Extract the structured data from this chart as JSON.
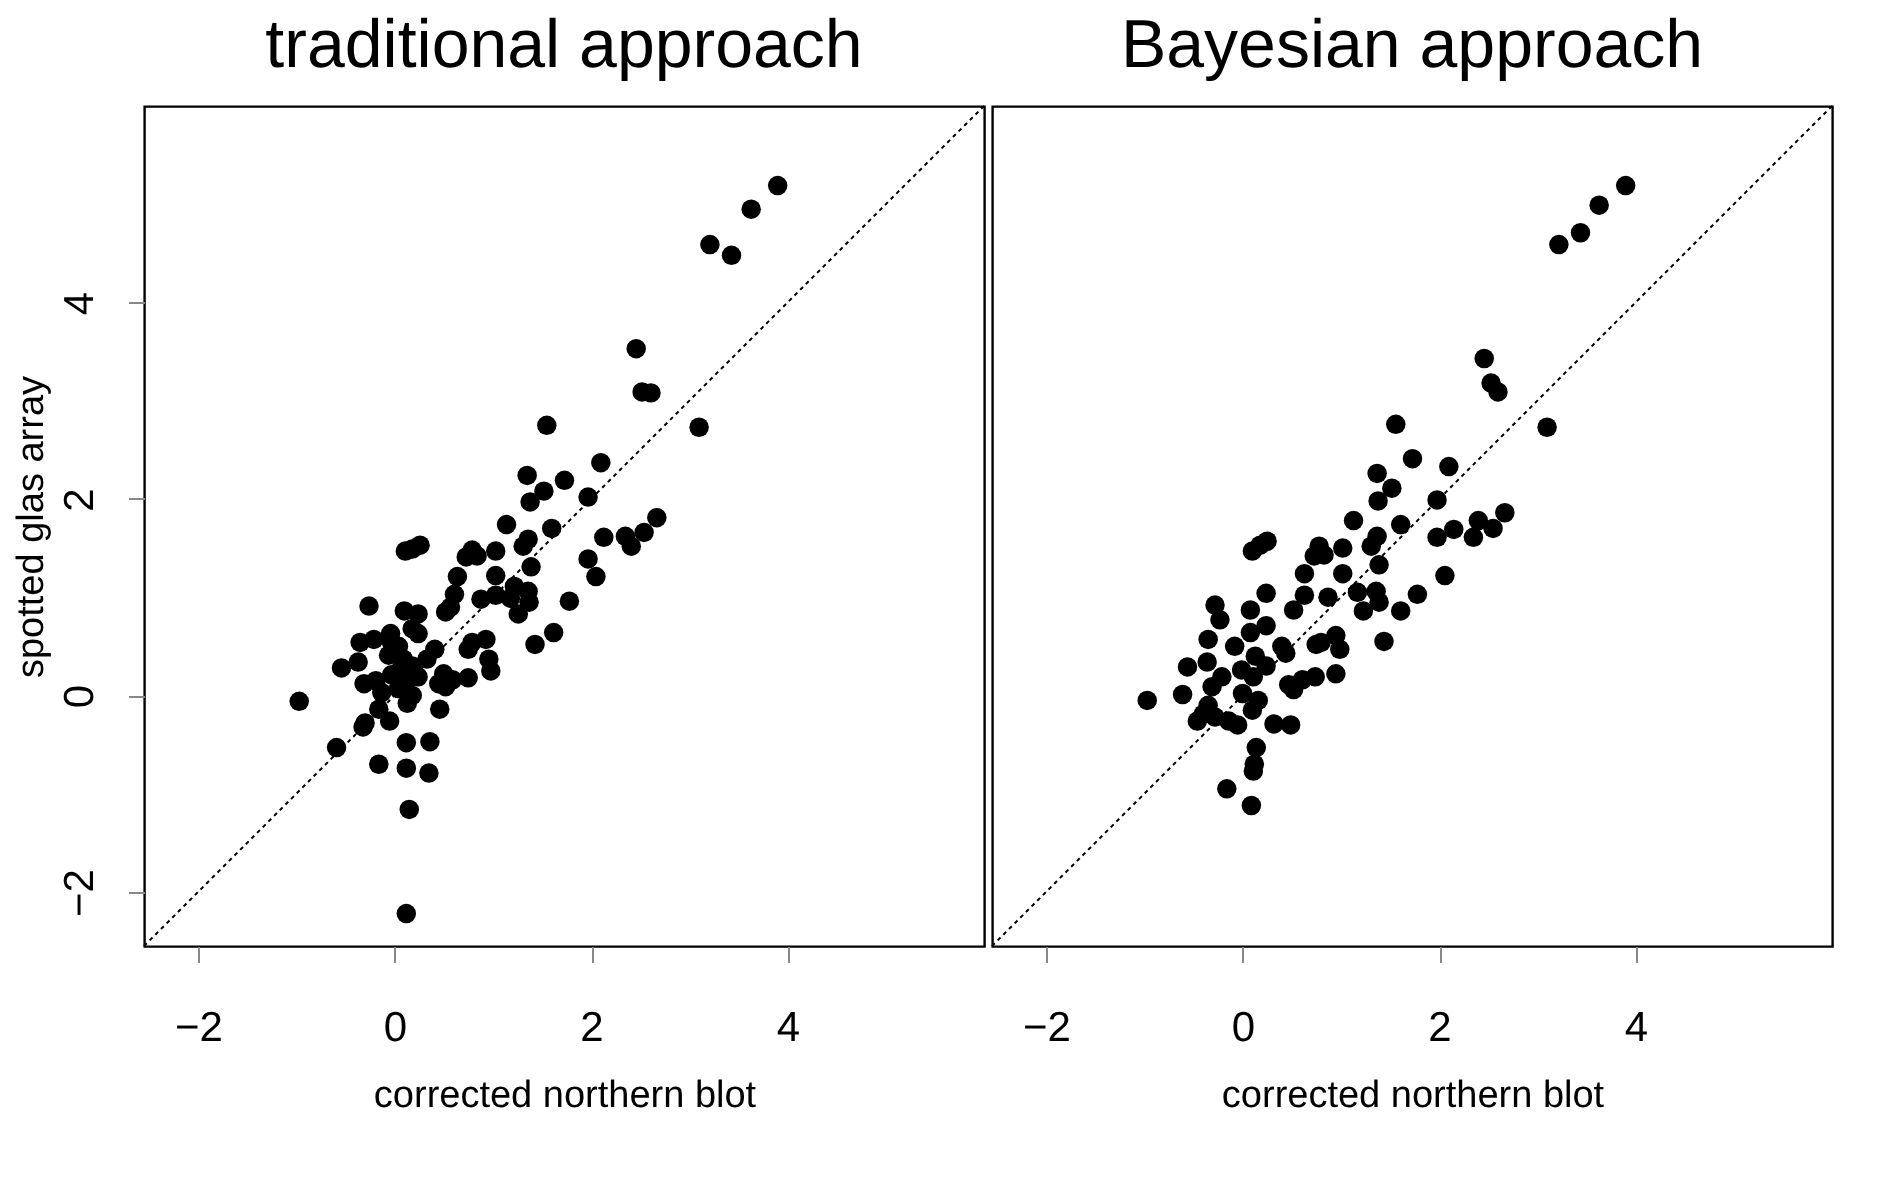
{
  "chart_data": [
    {
      "type": "scatter",
      "title": "traditional approach",
      "xlabel": "corrected northern blot",
      "ylabel": "spotted glas array",
      "xlim": [
        -2.55,
        6.0
      ],
      "ylim": [
        -2.55,
        6.0
      ],
      "xticks": [
        -2,
        0,
        2,
        4
      ],
      "yticks": [
        -2,
        0,
        2,
        4
      ],
      "grid": false,
      "series": [
        {
          "marker": "circle",
          "color": "#000000",
          "x": [
            3.9,
            3.63,
            3.21,
            3.43,
            2.46,
            2.52,
            2.61,
            3.1,
            1.55,
            2.1,
            1.35,
            1.73,
            1.52,
            1.38,
            1.97,
            1.14,
            1.6,
            2.67,
            2.13,
            2.35,
            2.41,
            2.54,
            1.97,
            2.05,
            1.36,
            1.31,
            1.39,
            0.79,
            0.73,
            0.84,
            1.03,
            0.64,
            1.03,
            1.22,
            1.36,
            1.03,
            0.88,
            1.18,
            1.37,
            1.26,
            1.78,
            0.61,
            0.52,
            0.57,
            1.62,
            1.43,
            0.93,
            0.75,
            0.79,
            0.96,
            0.98,
            0.75,
            0.59,
            0.52,
            0.45,
            0.5,
            0.41,
            0.46,
            0.11,
            0.18,
            0.26,
            -0.26,
            0.1,
            0.24,
            0.18,
            0.24,
            -0.04,
            -0.21,
            -0.35,
            0.04,
            -0.06,
            -0.37,
            -0.54,
            0.09,
            0.18,
            0.33,
            -0.31,
            -0.19,
            -0.03,
            0.11,
            0.04,
            -0.13,
            0.18,
            0.13,
            -0.16,
            -0.05,
            -0.3,
            -0.32,
            -0.97,
            -0.59,
            -0.16,
            0.12,
            0.36,
            0.12,
            0.35,
            0.15,
            0.12,
            -0.03,
            0.06,
            0.24
          ],
          "values": [
            5.19,
            4.95,
            4.59,
            4.48,
            3.53,
            3.09,
            3.08,
            2.73,
            2.75,
            2.37,
            2.24,
            2.19,
            2.08,
            1.97,
            2.02,
            1.74,
            1.7,
            1.81,
            1.61,
            1.62,
            1.52,
            1.66,
            1.39,
            1.21,
            1.59,
            1.52,
            1.31,
            1.48,
            1.41,
            1.42,
            1.47,
            1.21,
            1.22,
            1.11,
            1.06,
            1.02,
            0.98,
            0.99,
            0.95,
            0.83,
            0.96,
            1.03,
            0.85,
            0.9,
            0.64,
            0.52,
            0.57,
            0.47,
            0.54,
            0.37,
            0.25,
            0.18,
            0.16,
            0.09,
            0.12,
            0.22,
            0.47,
            -0.14,
            1.47,
            1.49,
            1.53,
            0.91,
            0.86,
            0.83,
            0.68,
            0.63,
            0.63,
            0.57,
            0.54,
            0.5,
            0.41,
            0.34,
            0.28,
            0.37,
            0.3,
            0.37,
            0.12,
            0.15,
            0.21,
            0.12,
            0.07,
            0.03,
            0.0,
            -0.08,
            -0.14,
            -0.26,
            -0.28,
            -0.32,
            -0.06,
            -0.53,
            -0.7,
            -0.48,
            -0.47,
            -0.74,
            -0.79,
            -1.16,
            -2.22,
            0.54,
            0.26,
            0.19
          ]
        },
        {
          "type": "line",
          "color": "#000000",
          "line_style": "dotted",
          "x": [
            -2.55,
            6.0
          ],
          "values": [
            -2.55,
            6.0
          ]
        }
      ]
    },
    {
      "type": "scatter",
      "title": "Bayesian approach",
      "xlabel": "corrected northern blot",
      "xlim": [
        -2.55,
        6.0
      ],
      "ylim": [
        -2.55,
        6.0
      ],
      "xticks": [
        -2,
        0,
        2,
        4
      ],
      "yticks": [
        -2,
        0,
        2,
        4
      ],
      "tick_labels": "x",
      "grid": false,
      "series": [
        {
          "marker": "circle",
          "color": "#000000",
          "x": [
            3.9,
            3.63,
            3.44,
            3.22,
            2.46,
            2.53,
            2.6,
            3.1,
            1.56,
            1.73,
            2.1,
            1.37,
            1.52,
            1.38,
            1.98,
            1.13,
            1.61,
            2.67,
            2.4,
            2.15,
            2.55,
            2.35,
            1.98,
            2.06,
            1.37,
            1.31,
            1.39,
            0.78,
            0.73,
            0.83,
            1.02,
            0.63,
            1.02,
            1.17,
            1.36,
            0.87,
            1.23,
            1.39,
            1.78,
            0.63,
            0.52,
            1.61,
            1.44,
            0.95,
            0.75,
            0.8,
            0.99,
            0.95,
            0.74,
            0.61,
            0.52,
            0.47,
            0.49,
            0.32,
            0.1,
            0.18,
            0.25,
            0.24,
            -0.28,
            -0.23,
            0.08,
            0.24,
            0.08,
            -0.35,
            -0.08,
            0.4,
            0.44,
            0.13,
            -0.36,
            -0.56,
            0.24,
            -0.01,
            -0.21,
            0.11,
            -0.31,
            -0.61,
            0.0,
            0.16,
            -0.35,
            0.1,
            -0.4,
            -0.46,
            -0.28,
            -0.14,
            -0.05,
            -0.97,
            0.14,
            0.12,
            0.11,
            -0.16,
            0.09
          ],
          "values": [
            5.19,
            4.99,
            4.71,
            4.59,
            3.43,
            3.18,
            3.09,
            2.73,
            2.76,
            2.41,
            2.33,
            2.26,
            2.11,
            1.98,
            1.99,
            1.78,
            1.74,
            1.86,
            1.78,
            1.69,
            1.7,
            1.61,
            1.61,
            1.22,
            1.62,
            1.52,
            1.33,
            1.52,
            1.42,
            1.43,
            1.5,
            1.24,
            1.24,
            1.05,
            1.06,
            1.0,
            0.86,
            0.95,
            1.03,
            1.02,
            0.87,
            0.86,
            0.55,
            0.61,
            0.52,
            0.54,
            0.47,
            0.22,
            0.19,
            0.16,
            0.06,
            0.11,
            -0.3,
            -0.29,
            1.47,
            1.53,
            1.57,
            1.04,
            0.92,
            0.77,
            0.87,
            0.71,
            0.64,
            0.57,
            0.5,
            0.5,
            0.43,
            0.4,
            0.34,
            0.29,
            0.3,
            0.26,
            0.19,
            0.19,
            0.09,
            0.01,
            0.02,
            -0.05,
            -0.1,
            -0.15,
            -0.19,
            -0.26,
            -0.22,
            -0.26,
            -0.3,
            -0.05,
            -0.53,
            -0.7,
            -0.77,
            -0.95,
            -1.12
          ]
        },
        {
          "type": "line",
          "color": "#000000",
          "line_style": "dotted",
          "x": [
            -2.55,
            6.0
          ],
          "values": [
            -2.55,
            6.0
          ]
        }
      ]
    }
  ]
}
